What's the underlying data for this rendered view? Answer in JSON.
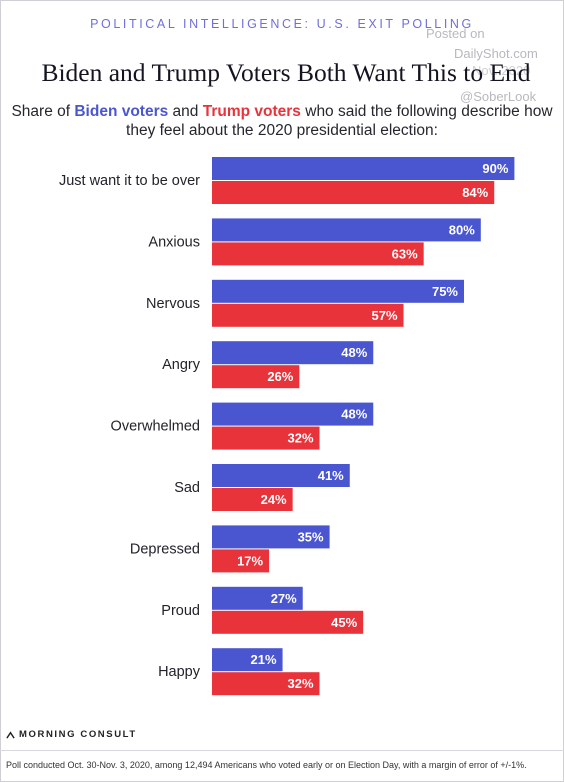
{
  "header": {
    "kicker": "POLITICAL INTELLIGENCE: U.S. EXIT POLLING",
    "title": "Biden and Trump Voters Both Want This to End",
    "subtitle_prefix": "Share of ",
    "subtitle_biden": "Biden voters",
    "subtitle_and": " and ",
    "subtitle_trump": "Trump voters",
    "subtitle_suffix": " who said the following describe how they feel about the 2020 presidential election:"
  },
  "watermark": {
    "line1": "Posted on",
    "line2": "DailyShot.com",
    "line3": "Nov. 2020",
    "line4": "@SoberLook"
  },
  "colors": {
    "biden": "#4a56cf",
    "trump": "#e8333b"
  },
  "chart_data": {
    "type": "bar",
    "orientation": "horizontal",
    "categories": [
      "Just want it to be over",
      "Anxious",
      "Nervous",
      "Angry",
      "Overwhelmed",
      "Sad",
      "Depressed",
      "Proud",
      "Happy"
    ],
    "series": [
      {
        "name": "Biden voters",
        "values": [
          90,
          80,
          75,
          48,
          48,
          41,
          35,
          27,
          21
        ],
        "labels": [
          "90%",
          "80%",
          "75%",
          "48%",
          "48%",
          "41%",
          "35%",
          "27%",
          "21%"
        ]
      },
      {
        "name": "Trump voters",
        "values": [
          84,
          63,
          57,
          26,
          32,
          24,
          17,
          45,
          32
        ],
        "labels": [
          "84%",
          "63%",
          "57%",
          "26%",
          "32%",
          "24%",
          "17%",
          "45%",
          "32%"
        ]
      }
    ],
    "title": "Biden and Trump Voters Both Want This to End",
    "xlim": [
      0,
      100
    ],
    "grid": false,
    "legend": "inline-subtitle"
  },
  "footer": {
    "brand": "MORNING CONSULT",
    "note": "Poll conducted Oct. 30-Nov. 3, 2020, among 12,494 Americans who voted early or on Election Day, with a margin of error of +/-1%."
  }
}
